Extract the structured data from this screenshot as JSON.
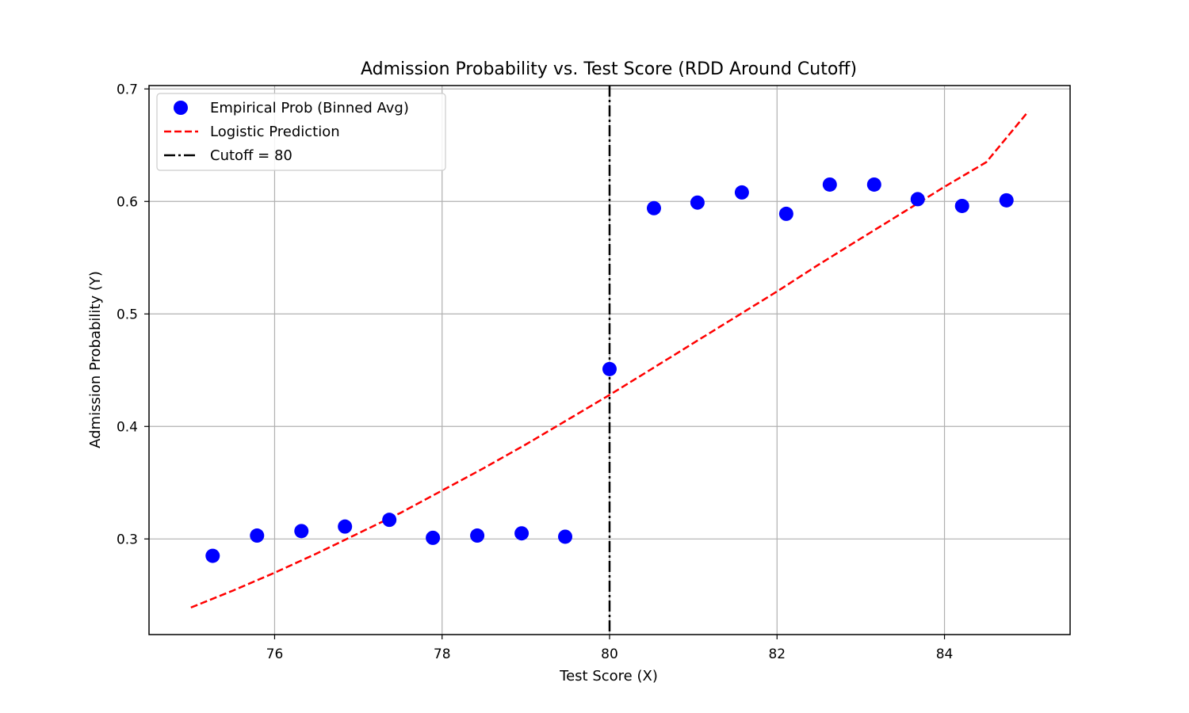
{
  "chart_data": {
    "type": "scatter",
    "title": "Admission Probability vs. Test Score (RDD Around Cutoff)",
    "xlabel": "Test Score (X)",
    "ylabel": "Admission Probability (Y)",
    "xlim": [
      74.5,
      85.5
    ],
    "ylim": [
      0.215,
      0.703
    ],
    "xticks": [
      76,
      78,
      80,
      82,
      84
    ],
    "yticks": [
      0.3,
      0.4,
      0.5,
      0.6,
      0.7
    ],
    "grid": true,
    "legend_position": "upper-left",
    "series": [
      {
        "name": "Empirical Prob (Binned Avg)",
        "type": "scatter",
        "color": "#0000ff",
        "x": [
          75.26,
          75.79,
          76.32,
          76.84,
          77.37,
          77.89,
          78.42,
          78.95,
          79.47,
          80.0,
          80.53,
          81.05,
          81.58,
          82.11,
          82.63,
          83.16,
          83.68,
          84.21,
          84.74
        ],
        "y": [
          0.285,
          0.303,
          0.307,
          0.311,
          0.317,
          0.301,
          0.303,
          0.305,
          0.302,
          0.451,
          0.594,
          0.599,
          0.608,
          0.589,
          0.615,
          0.615,
          0.602,
          0.596,
          0.601
        ]
      },
      {
        "name": "Logistic Prediction",
        "type": "line",
        "style": "dashed",
        "color": "#ff0000",
        "x": [
          75.0,
          75.5,
          76.0,
          76.5,
          77.0,
          77.5,
          78.0,
          78.5,
          79.0,
          79.5,
          80.0,
          80.5,
          81.0,
          81.5,
          82.0,
          82.5,
          83.0,
          83.5,
          84.0,
          84.5,
          85.0
        ],
        "y": [
          0.239,
          0.254,
          0.27,
          0.287,
          0.305,
          0.323,
          0.343,
          0.363,
          0.384,
          0.406,
          0.428,
          0.451,
          0.474,
          0.497,
          0.52,
          0.544,
          0.567,
          0.59,
          0.613,
          0.635,
          0.68
        ]
      },
      {
        "name": "Cutoff = 80",
        "type": "vline",
        "style": "dashdot",
        "color": "#000000",
        "x": 80
      }
    ]
  }
}
